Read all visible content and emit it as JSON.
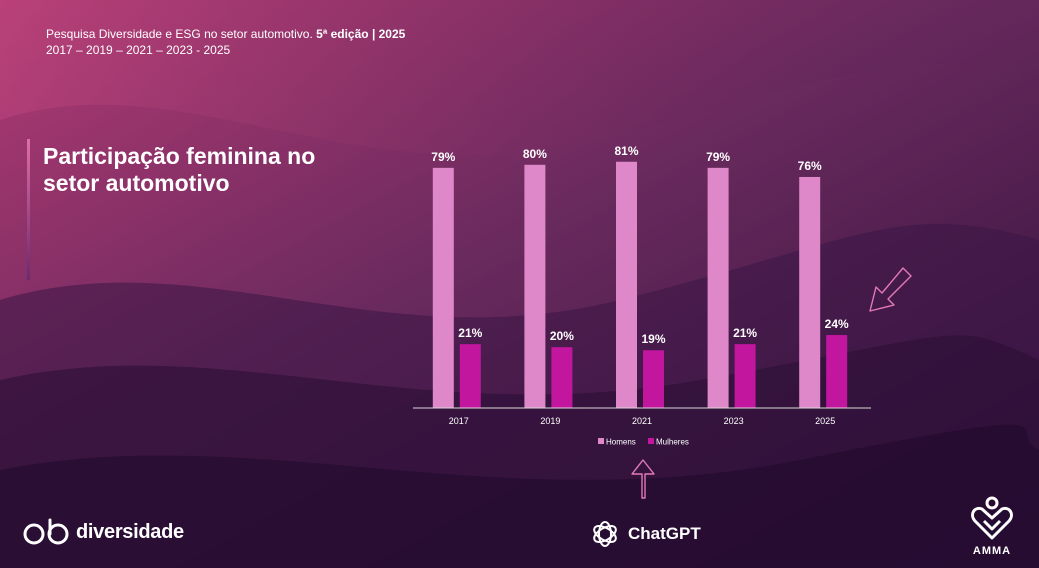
{
  "header": {
    "line1_prefix": "Pesquisa Diversidade e ESG no setor automotivo. ",
    "line1_bold": "5ª edição  |  2025",
    "line2": "2017 – 2019 – 2021 – 2023 - 2025"
  },
  "title": "Participação feminina no setor automotivo",
  "logos": {
    "diversidade": "diversidade",
    "chatgpt": "ChatGPT",
    "amma": "AMMA"
  },
  "colors": {
    "homens": "#de87c9",
    "mulheres": "#c2169f"
  },
  "chart_data": {
    "type": "bar",
    "categories": [
      "2017",
      "2019",
      "2021",
      "2023",
      "2025"
    ],
    "series": [
      {
        "name": "Homens",
        "values": [
          79,
          80,
          81,
          79,
          76
        ],
        "labels": [
          "79%",
          "80%",
          "81%",
          "79%",
          "76%"
        ]
      },
      {
        "name": "Mulheres",
        "values": [
          21,
          20,
          19,
          21,
          24
        ],
        "labels": [
          "21%",
          "20%",
          "19%",
          "21%",
          "24%"
        ]
      }
    ],
    "ylim": [
      0,
      100
    ],
    "grid": false,
    "legend": "bottom",
    "annotations": [
      "arrow pointing to 2025 Mulheres bar",
      "arrow pointing up at legend"
    ]
  }
}
